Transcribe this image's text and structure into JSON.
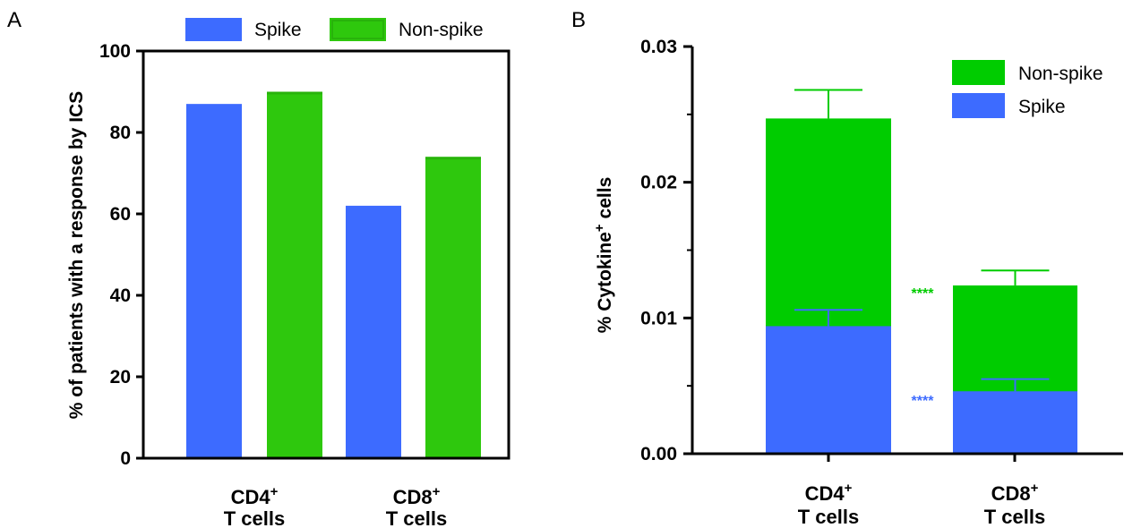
{
  "colors": {
    "spike": "#3d6bff",
    "non_spike_a": "#2ec80d",
    "non_spike_b": "#00cc00"
  },
  "chart_data": [
    {
      "type": "bar",
      "panel": "A",
      "legend": {
        "placement": "top",
        "entries": [
          "Spike",
          "Non-spike"
        ]
      },
      "ylabel": "% of patients with a response by ICS",
      "ylim": [
        0,
        100
      ],
      "yticks": [
        "0",
        "20",
        "40",
        "60",
        "80",
        "100"
      ],
      "categories": [
        {
          "main": "CD4",
          "sup": "+",
          "line2": "T cells"
        },
        {
          "main": "CD8",
          "sup": "+",
          "line2": "T cells"
        }
      ],
      "series": [
        {
          "name": "Spike",
          "values": [
            87,
            62
          ]
        },
        {
          "name": "Non-spike",
          "values": [
            90,
            74
          ]
        }
      ]
    },
    {
      "type": "bar",
      "stacked": true,
      "panel": "B",
      "legend": {
        "placement": "top-right",
        "entries": [
          "Non-spike",
          "Spike"
        ]
      },
      "ylabel": {
        "main": "% Cytokine",
        "sup": "+",
        "rest": " cells"
      },
      "ylim": [
        0,
        0.03
      ],
      "yticks": [
        "0.00",
        "0.01",
        "0.02",
        "0.03"
      ],
      "categories": [
        {
          "main": "CD4",
          "sup": "+",
          "line2": "T cells"
        },
        {
          "main": "CD8",
          "sup": "+",
          "line2": "T cells"
        }
      ],
      "series": [
        {
          "name": "Spike",
          "values": [
            0.0094,
            0.0046
          ],
          "error_upper": [
            0.0106,
            0.0055
          ]
        },
        {
          "name": "Non-spike",
          "totals": [
            0.0247,
            0.0124
          ],
          "error_upper": [
            0.0268,
            0.0135
          ]
        }
      ],
      "annotations": [
        {
          "text": "****",
          "series": "Non-spike"
        },
        {
          "text": "****",
          "series": "Spike"
        }
      ]
    }
  ]
}
